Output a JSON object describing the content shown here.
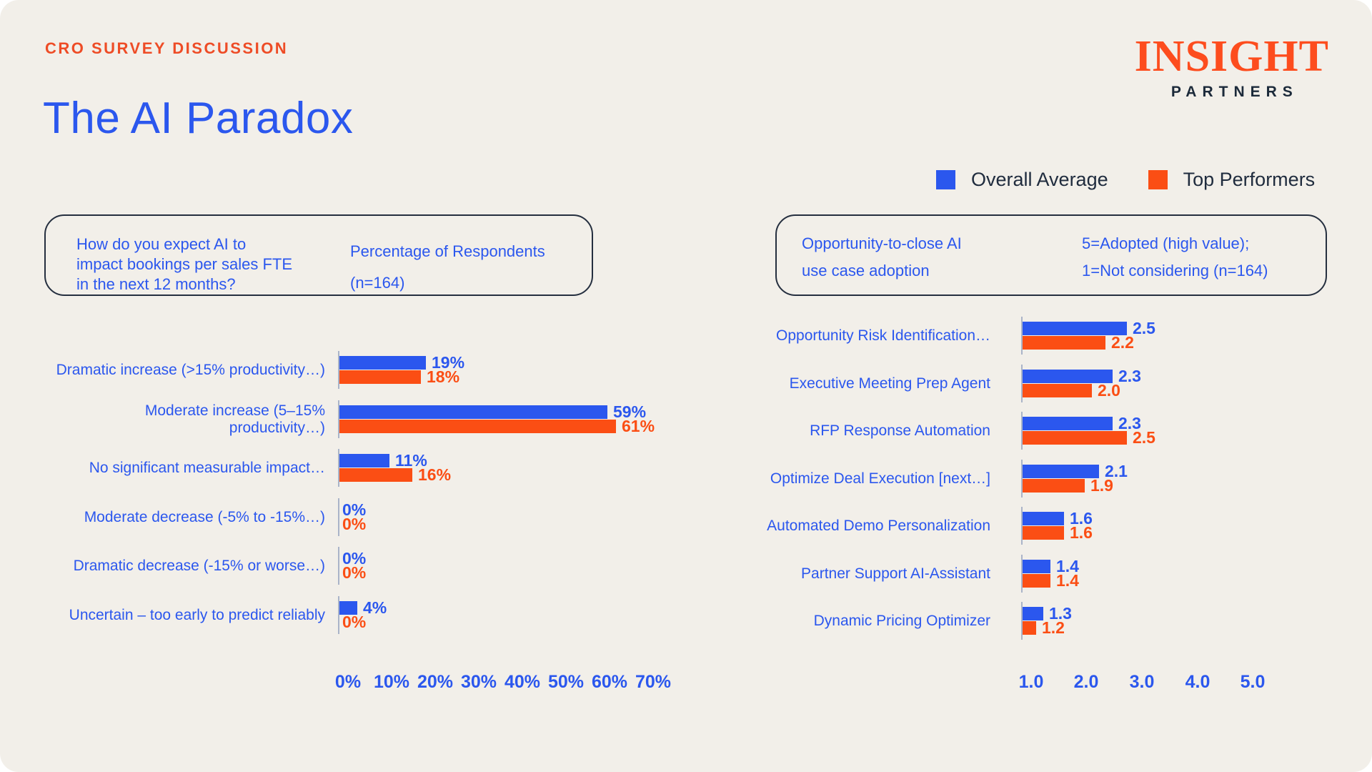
{
  "page": {
    "kicker": "CRO SURVEY DISCUSSION",
    "title": "The AI Paradox",
    "logo_primary": "INSIGHT",
    "logo_secondary": "PARTNERS"
  },
  "legend": {
    "items": [
      {
        "label": "Overall Average",
        "color": "#2B57EE"
      },
      {
        "label": "Top Performers",
        "color": "#FB4E14"
      }
    ]
  },
  "boxes": {
    "left": {
      "question_lines": [
        "How do you expect AI to",
        "impact bookings per sales FTE",
        "in the next 12 months?"
      ],
      "note_lines": [
        "Percentage of Respondents",
        "(n=164)"
      ]
    },
    "right": {
      "question_lines": [
        "Opportunity-to-close AI",
        "use case adoption"
      ],
      "note_lines": [
        "5=Adopted (high value);",
        "1=Not considering (n=164)"
      ]
    }
  },
  "colors": {
    "background": "#F2EFE9",
    "blue": "#2B57EE",
    "orange": "#FB4E14",
    "navy": "#202C3E",
    "tick_line": "#AAB4C8"
  },
  "chart_data": [
    {
      "type": "bar",
      "orientation": "horizontal",
      "title": "How do you expect AI to impact bookings per sales FTE in the next 12 months?",
      "subtitle": "Percentage of Respondents (n=164)",
      "value_format": "percent",
      "categories": [
        "Dramatic increase (>15% productivity…)",
        "Moderate increase (5–15% productivity…)",
        "No significant measurable impact…",
        "Moderate decrease (-5% to -15%…)",
        "Dramatic decrease (-15% or worse…)",
        "Uncertain – too early to predict reliably"
      ],
      "series": [
        {
          "name": "Overall Average",
          "values": [
            19,
            59,
            11,
            0,
            0,
            4
          ]
        },
        {
          "name": "Top Performers",
          "values": [
            18,
            61,
            16,
            0,
            0,
            0
          ]
        }
      ],
      "xticks": [
        "0%",
        "10%",
        "20%",
        "30%",
        "40%",
        "50%",
        "60%",
        "70%"
      ],
      "xlim": [
        0,
        70
      ],
      "grid": false,
      "legend_position": "top-right"
    },
    {
      "type": "bar",
      "orientation": "horizontal",
      "title": "Opportunity-to-close AI use case adoption",
      "subtitle": "5=Adopted (high value); 1=Not considering (n=164)",
      "value_format": "decimal1",
      "categories": [
        "Opportunity Risk Identification…",
        "Executive Meeting Prep Agent",
        "RFP Response Automation",
        "Optimize Deal Execution [next…]",
        "Automated Demo Personalization",
        "Partner Support AI-Assistant",
        "Dynamic Pricing Optimizer"
      ],
      "series": [
        {
          "name": "Overall Average",
          "values": [
            2.5,
            2.3,
            2.3,
            2.1,
            1.6,
            1.4,
            1.3
          ]
        },
        {
          "name": "Top Performers",
          "values": [
            2.2,
            2.0,
            2.5,
            1.9,
            1.6,
            1.4,
            1.2
          ]
        }
      ],
      "xticks": [
        "1.0",
        "2.0",
        "3.0",
        "4.0",
        "5.0"
      ],
      "xlim": [
        1,
        5
      ],
      "grid": false,
      "legend_position": "top-right"
    }
  ]
}
